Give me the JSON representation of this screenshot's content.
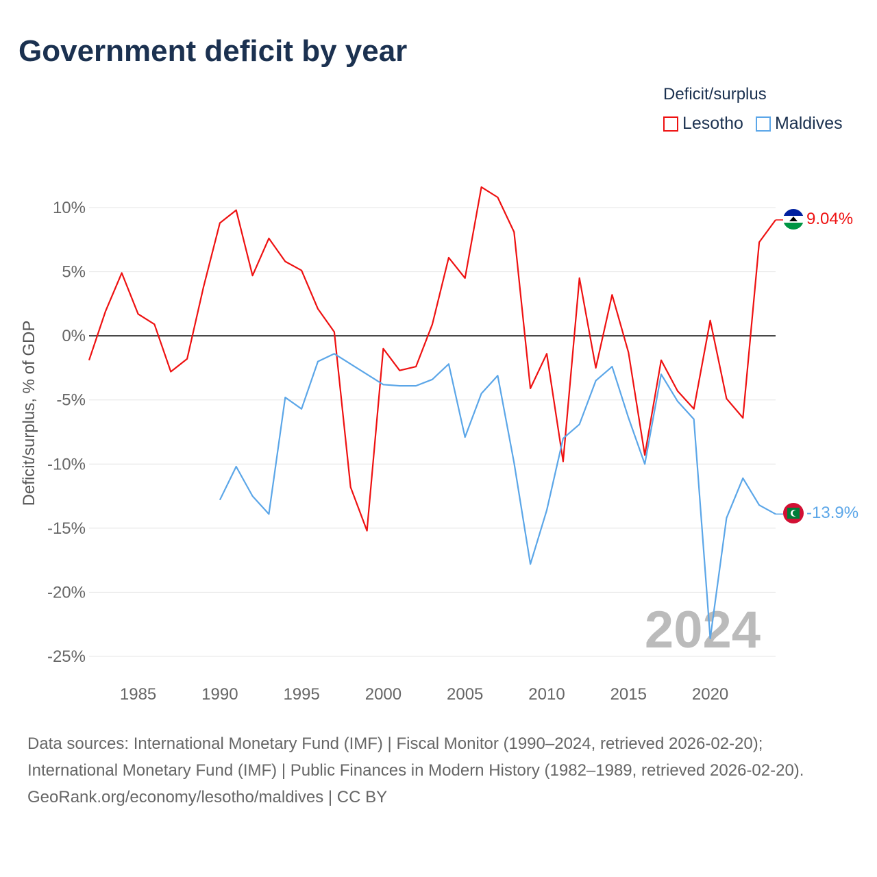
{
  "title": "Government deficit by year",
  "legend": {
    "title": "Deficit/surplus",
    "items": [
      {
        "label": "Lesotho",
        "color": "#ee1111"
      },
      {
        "label": "Maldives",
        "color": "#5ba6e8"
      }
    ]
  },
  "year_label": "2024",
  "end_labels": {
    "lesotho": "9.04%",
    "maldives": "-13.9%"
  },
  "footer": {
    "sources": "Data sources: International Monetary Fund (IMF) | Fiscal Monitor (1990–2024, retrieved 2026-02-20); International Monetary Fund (IMF) | Public Finances in Modern History (1982–1989, retrieved 2026-02-20).",
    "credit": "GeoRank.org/economy/lesotho/maldives | CC BY"
  },
  "chart_data": {
    "type": "line",
    "title": "Government deficit by year",
    "ylabel": "Deficit/surplus, % of GDP",
    "xlabel": "",
    "xlim": [
      1982,
      2024
    ],
    "ylim": [
      -25,
      10
    ],
    "y_ticks": [
      10,
      5,
      0,
      -5,
      -10,
      -15,
      -20,
      -25
    ],
    "y_tick_labels": [
      "10%",
      "5%",
      "0%",
      "-5%",
      "-10%",
      "-15%",
      "-20%",
      "-25%"
    ],
    "x_ticks": [
      1985,
      1990,
      1995,
      2000,
      2005,
      2010,
      2015,
      2020
    ],
    "x_tick_labels": [
      "1985",
      "1990",
      "1995",
      "2000",
      "2005",
      "2010",
      "2015",
      "2020"
    ],
    "grid": true,
    "legend_position": "top-right",
    "series": [
      {
        "name": "Lesotho",
        "color": "#ee1111",
        "start_year": 1982,
        "values": [
          -1.9,
          1.9,
          4.9,
          1.7,
          0.9,
          -2.8,
          -1.8,
          3.8,
          8.8,
          9.8,
          4.7,
          7.6,
          5.8,
          5.1,
          2.1,
          0.3,
          -11.8,
          -15.2,
          -1.0,
          -2.7,
          -2.4,
          0.9,
          6.1,
          4.5,
          11.6,
          10.8,
          8.1,
          -4.1,
          -1.4,
          -9.8,
          4.5,
          -2.5,
          3.2,
          -1.3,
          -9.3,
          -1.9,
          -4.3,
          -5.7,
          1.2,
          -4.9,
          -6.4,
          7.3,
          9.04
        ]
      },
      {
        "name": "Maldives",
        "color": "#5ba6e8",
        "start_year": 1990,
        "values": [
          -12.8,
          -10.2,
          -12.5,
          -13.9,
          -4.8,
          -5.7,
          -2.0,
          -1.4,
          -2.2,
          -3.0,
          -3.8,
          -3.9,
          -3.9,
          -3.4,
          -2.2,
          -7.9,
          -4.5,
          -3.1,
          -9.9,
          -17.8,
          -13.6,
          -8.0,
          -6.9,
          -3.5,
          -2.4,
          -6.4,
          -10.0,
          -3.0,
          -5.1,
          -6.5,
          -23.6,
          -14.2,
          -11.1,
          -13.2,
          -13.9
        ]
      }
    ]
  }
}
